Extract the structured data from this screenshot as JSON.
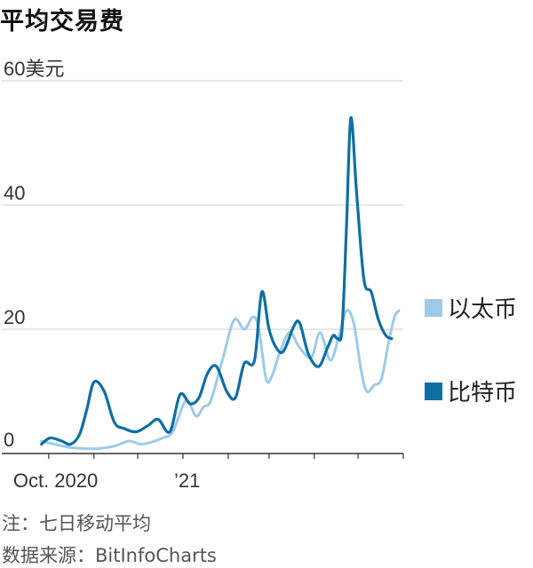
{
  "chart_data": {
    "type": "line",
    "title": "平均交易费",
    "y_unit_label": "60美元",
    "ylim": [
      0,
      60
    ],
    "y_ticks": [
      0,
      20,
      40,
      60
    ],
    "y_tick_labels": [
      "0",
      "20",
      "40",
      "60美元"
    ],
    "x_tick_labels": [
      {
        "x": "2020-10",
        "label": "Oct. 2020"
      },
      {
        "x": "2021-01",
        "label": "’21"
      }
    ],
    "x_month_ticks": [
      "2020-10",
      "2020-11",
      "2020-12",
      "2021-01",
      "2021-02",
      "2021-03",
      "2021-04",
      "2021-05",
      "2021-06"
    ],
    "grid": true,
    "legend_position": "right",
    "series": [
      {
        "name": "以太币",
        "color": "#9ecae9",
        "x": [
          "2020-09-26",
          "2020-10-05",
          "2020-10-15",
          "2020-10-25",
          "2020-11-05",
          "2020-11-15",
          "2020-11-25",
          "2020-12-03",
          "2020-12-10",
          "2020-12-18",
          "2020-12-25",
          "2021-01-03",
          "2021-01-10",
          "2021-01-15",
          "2021-01-20",
          "2021-01-28",
          "2021-02-05",
          "2021-02-12",
          "2021-02-18",
          "2021-02-22",
          "2021-02-27",
          "2021-03-03",
          "2021-03-08",
          "2021-03-15",
          "2021-03-22",
          "2021-03-30",
          "2021-04-05",
          "2021-04-12",
          "2021-04-18",
          "2021-04-23",
          "2021-04-28",
          "2021-05-03",
          "2021-05-07",
          "2021-05-12",
          "2021-05-17",
          "2021-05-22",
          "2021-05-26",
          "2021-05-29"
        ],
        "values": [
          2.0,
          1.5,
          1.0,
          0.8,
          0.8,
          1.2,
          2.0,
          1.5,
          1.8,
          2.5,
          3.5,
          8.5,
          6.0,
          7.5,
          8.5,
          15.0,
          21.5,
          20.0,
          22.0,
          20.0,
          12.0,
          12.5,
          16.0,
          19.5,
          17.0,
          15.5,
          19.5,
          15.0,
          19.0,
          23.0,
          21.0,
          13.5,
          10.0,
          11.0,
          12.0,
          18.0,
          22.0,
          23.0
        ]
      },
      {
        "name": "比特币",
        "color": "#0f6fa3",
        "x": [
          "2020-09-26",
          "2020-10-02",
          "2020-10-10",
          "2020-10-16",
          "2020-10-22",
          "2020-10-27",
          "2020-11-01",
          "2020-11-08",
          "2020-11-15",
          "2020-11-22",
          "2020-11-30",
          "2020-12-08",
          "2020-12-15",
          "2020-12-23",
          "2020-12-30",
          "2021-01-06",
          "2021-01-12",
          "2021-01-18",
          "2021-01-24",
          "2021-01-31",
          "2021-02-06",
          "2021-02-12",
          "2021-02-19",
          "2021-02-24",
          "2021-03-01",
          "2021-03-06",
          "2021-03-11",
          "2021-03-18",
          "2021-03-22",
          "2021-03-28",
          "2021-04-04",
          "2021-04-10",
          "2021-04-14",
          "2021-04-17",
          "2021-04-20",
          "2021-04-23",
          "2021-04-26",
          "2021-04-30",
          "2021-05-05",
          "2021-05-10",
          "2021-05-15",
          "2021-05-20",
          "2021-05-24"
        ],
        "values": [
          1.5,
          2.5,
          2.0,
          1.5,
          3.0,
          7.0,
          11.5,
          10.0,
          5.0,
          4.0,
          3.5,
          4.5,
          5.5,
          3.5,
          9.5,
          8.0,
          9.0,
          13.0,
          14.0,
          10.0,
          9.0,
          14.5,
          15.0,
          26.0,
          20.0,
          17.0,
          16.5,
          20.5,
          21.0,
          16.0,
          14.0,
          17.0,
          19.0,
          18.5,
          20.0,
          36.0,
          54.0,
          42.0,
          28.0,
          26.0,
          21.5,
          19.0,
          18.5
        ]
      }
    ]
  },
  "footer": {
    "note": "注：七日移动平均",
    "source": "数据来源：BitInfoCharts"
  }
}
